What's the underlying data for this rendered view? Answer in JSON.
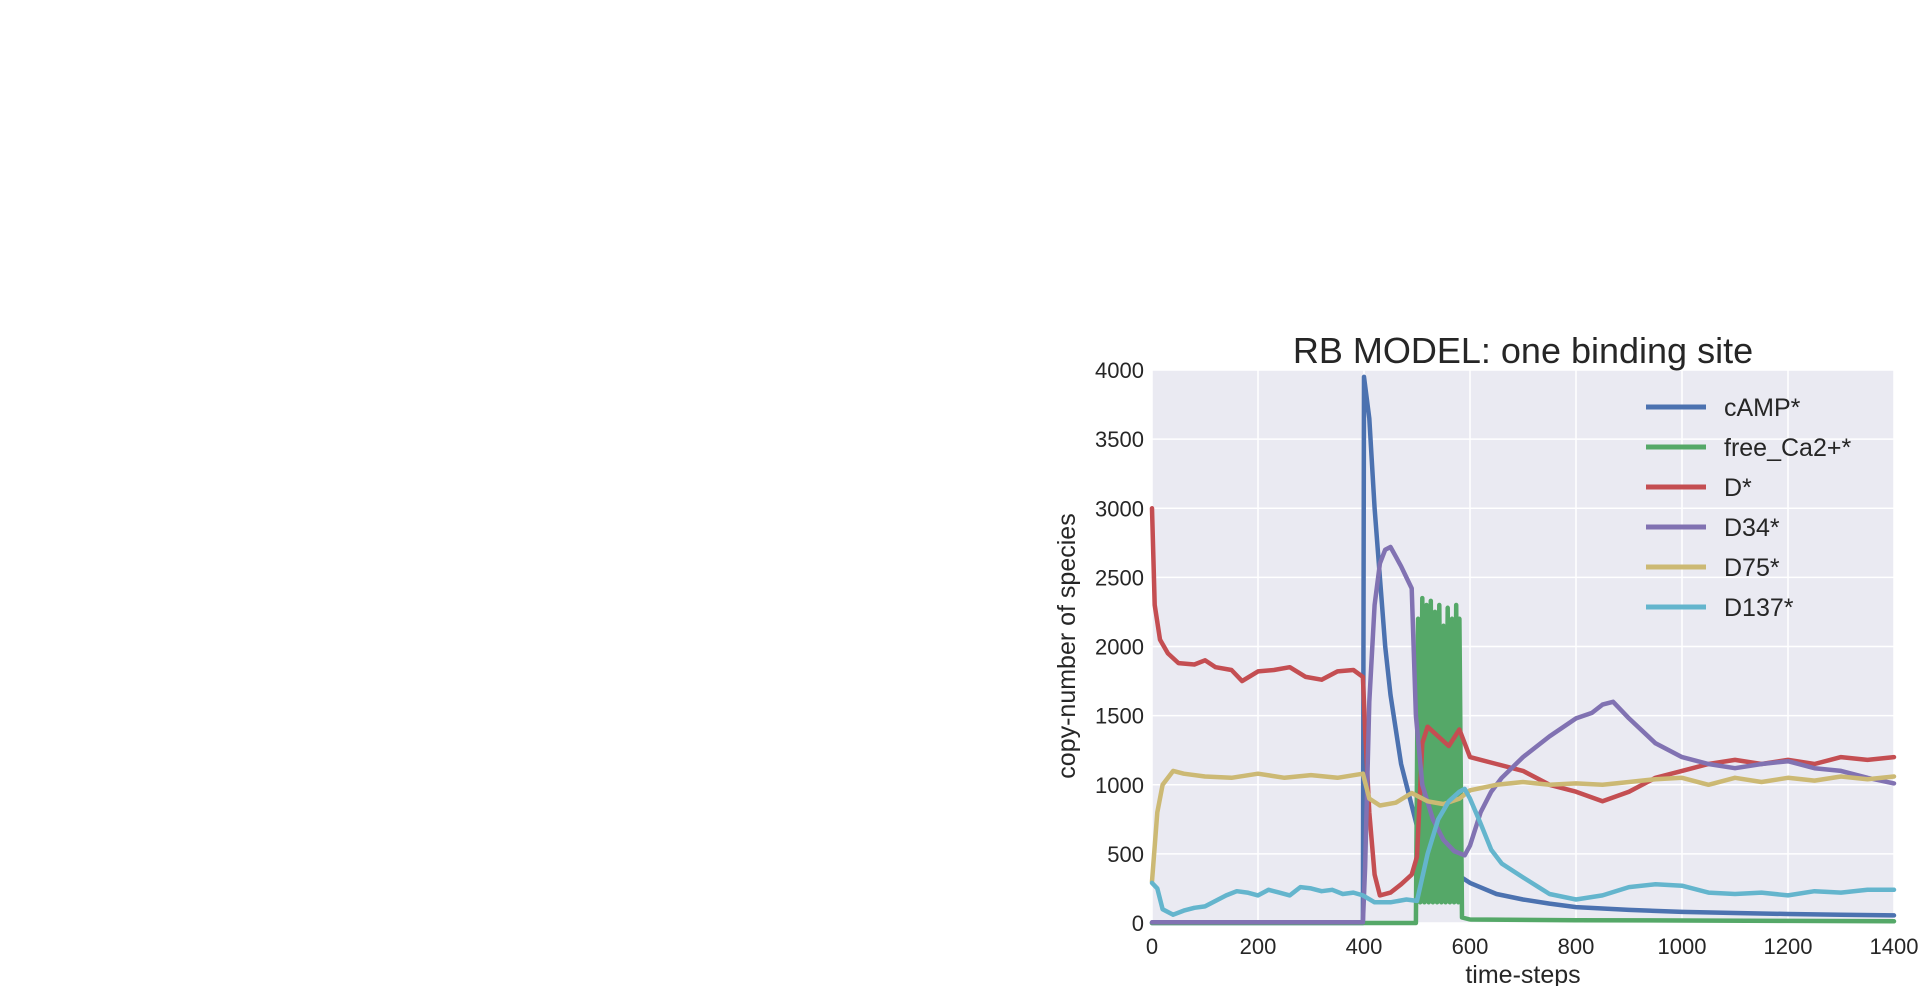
{
  "chart_data": {
    "type": "line",
    "title": "RB MODEL: one binding site",
    "xlabel": "time-steps",
    "ylabel": "copy-number of species",
    "xlim": [
      0,
      1400
    ],
    "ylim": [
      0,
      4000
    ],
    "xticks": [
      0,
      200,
      400,
      600,
      800,
      1000,
      1200,
      1400
    ],
    "yticks": [
      0,
      500,
      1000,
      1500,
      2000,
      2500,
      3000,
      3500,
      4000
    ],
    "grid": true,
    "legend": "top-right",
    "series": [
      {
        "name": "cAMP*",
        "color": "#4c72b0",
        "points": [
          [
            0,
            0
          ],
          [
            398,
            0
          ],
          [
            400,
            3950
          ],
          [
            410,
            3650
          ],
          [
            420,
            3000
          ],
          [
            430,
            2500
          ],
          [
            440,
            2000
          ],
          [
            450,
            1650
          ],
          [
            460,
            1400
          ],
          [
            470,
            1150
          ],
          [
            480,
            1000
          ],
          [
            490,
            850
          ],
          [
            500,
            700
          ],
          [
            520,
            550
          ],
          [
            540,
            470
          ],
          [
            560,
            400
          ],
          [
            580,
            340
          ],
          [
            600,
            290
          ],
          [
            650,
            210
          ],
          [
            700,
            170
          ],
          [
            750,
            140
          ],
          [
            800,
            115
          ],
          [
            900,
            95
          ],
          [
            1000,
            80
          ],
          [
            1100,
            72
          ],
          [
            1200,
            65
          ],
          [
            1300,
            60
          ],
          [
            1400,
            55
          ]
        ]
      },
      {
        "name": "free_Ca2+*",
        "color": "#55a868",
        "points": [
          [
            0,
            0
          ],
          [
            498,
            0
          ],
          [
            502,
            2200
          ],
          [
            506,
            150
          ],
          [
            510,
            2350
          ],
          [
            514,
            150
          ],
          [
            518,
            2300
          ],
          [
            522,
            150
          ],
          [
            526,
            2330
          ],
          [
            530,
            150
          ],
          [
            534,
            2250
          ],
          [
            538,
            150
          ],
          [
            542,
            2300
          ],
          [
            546,
            150
          ],
          [
            550,
            2150
          ],
          [
            554,
            150
          ],
          [
            558,
            2280
          ],
          [
            562,
            150
          ],
          [
            566,
            2200
          ],
          [
            570,
            150
          ],
          [
            574,
            2300
          ],
          [
            578,
            150
          ],
          [
            580,
            2200
          ],
          [
            585,
            40
          ],
          [
            600,
            25
          ],
          [
            800,
            20
          ],
          [
            1000,
            18
          ],
          [
            1200,
            15
          ],
          [
            1400,
            12
          ]
        ]
      },
      {
        "name": "D*",
        "color": "#c44e52",
        "points": [
          [
            0,
            3000
          ],
          [
            5,
            2300
          ],
          [
            15,
            2050
          ],
          [
            30,
            1950
          ],
          [
            50,
            1880
          ],
          [
            80,
            1870
          ],
          [
            100,
            1900
          ],
          [
            120,
            1850
          ],
          [
            150,
            1830
          ],
          [
            170,
            1750
          ],
          [
            200,
            1820
          ],
          [
            230,
            1830
          ],
          [
            260,
            1850
          ],
          [
            290,
            1780
          ],
          [
            320,
            1760
          ],
          [
            350,
            1820
          ],
          [
            380,
            1830
          ],
          [
            398,
            1780
          ],
          [
            402,
            1400
          ],
          [
            410,
            800
          ],
          [
            420,
            350
          ],
          [
            430,
            200
          ],
          [
            450,
            220
          ],
          [
            470,
            280
          ],
          [
            490,
            350
          ],
          [
            500,
            480
          ],
          [
            510,
            1300
          ],
          [
            520,
            1420
          ],
          [
            540,
            1350
          ],
          [
            560,
            1280
          ],
          [
            580,
            1400
          ],
          [
            600,
            1200
          ],
          [
            650,
            1150
          ],
          [
            700,
            1100
          ],
          [
            750,
            1000
          ],
          [
            800,
            950
          ],
          [
            850,
            880
          ],
          [
            900,
            950
          ],
          [
            950,
            1050
          ],
          [
            1000,
            1100
          ],
          [
            1050,
            1150
          ],
          [
            1100,
            1180
          ],
          [
            1150,
            1150
          ],
          [
            1200,
            1180
          ],
          [
            1250,
            1150
          ],
          [
            1300,
            1200
          ],
          [
            1350,
            1180
          ],
          [
            1400,
            1200
          ]
        ]
      },
      {
        "name": "D34*",
        "color": "#8172b2",
        "points": [
          [
            0,
            5
          ],
          [
            398,
            5
          ],
          [
            402,
            400
          ],
          [
            410,
            1600
          ],
          [
            420,
            2300
          ],
          [
            430,
            2600
          ],
          [
            440,
            2700
          ],
          [
            450,
            2720
          ],
          [
            460,
            2650
          ],
          [
            470,
            2580
          ],
          [
            480,
            2500
          ],
          [
            490,
            2420
          ],
          [
            498,
            1500
          ],
          [
            510,
            1000
          ],
          [
            530,
            750
          ],
          [
            550,
            600
          ],
          [
            570,
            520
          ],
          [
            590,
            490
          ],
          [
            600,
            560
          ],
          [
            620,
            800
          ],
          [
            640,
            950
          ],
          [
            660,
            1050
          ],
          [
            700,
            1200
          ],
          [
            750,
            1350
          ],
          [
            800,
            1480
          ],
          [
            830,
            1520
          ],
          [
            850,
            1580
          ],
          [
            870,
            1600
          ],
          [
            880,
            1560
          ],
          [
            900,
            1480
          ],
          [
            950,
            1300
          ],
          [
            1000,
            1200
          ],
          [
            1050,
            1150
          ],
          [
            1100,
            1120
          ],
          [
            1150,
            1150
          ],
          [
            1200,
            1170
          ],
          [
            1250,
            1120
          ],
          [
            1300,
            1100
          ],
          [
            1350,
            1050
          ],
          [
            1400,
            1010
          ]
        ]
      },
      {
        "name": "D75*",
        "color": "#ccb974",
        "points": [
          [
            0,
            300
          ],
          [
            10,
            800
          ],
          [
            20,
            1000
          ],
          [
            40,
            1100
          ],
          [
            60,
            1080
          ],
          [
            100,
            1060
          ],
          [
            150,
            1050
          ],
          [
            200,
            1080
          ],
          [
            250,
            1050
          ],
          [
            300,
            1070
          ],
          [
            350,
            1050
          ],
          [
            398,
            1080
          ],
          [
            410,
            900
          ],
          [
            430,
            850
          ],
          [
            460,
            870
          ],
          [
            490,
            940
          ],
          [
            520,
            880
          ],
          [
            550,
            860
          ],
          [
            580,
            900
          ],
          [
            600,
            960
          ],
          [
            650,
            1000
          ],
          [
            700,
            1020
          ],
          [
            750,
            1000
          ],
          [
            800,
            1010
          ],
          [
            850,
            1000
          ],
          [
            900,
            1020
          ],
          [
            950,
            1040
          ],
          [
            1000,
            1050
          ],
          [
            1050,
            1000
          ],
          [
            1100,
            1050
          ],
          [
            1150,
            1020
          ],
          [
            1200,
            1050
          ],
          [
            1250,
            1030
          ],
          [
            1300,
            1060
          ],
          [
            1350,
            1040
          ],
          [
            1400,
            1060
          ]
        ]
      },
      {
        "name": "D137*",
        "color": "#64b5cd",
        "points": [
          [
            0,
            290
          ],
          [
            10,
            250
          ],
          [
            20,
            100
          ],
          [
            40,
            60
          ],
          [
            60,
            90
          ],
          [
            80,
            110
          ],
          [
            100,
            120
          ],
          [
            120,
            160
          ],
          [
            140,
            200
          ],
          [
            160,
            230
          ],
          [
            180,
            220
          ],
          [
            200,
            200
          ],
          [
            220,
            240
          ],
          [
            240,
            220
          ],
          [
            260,
            200
          ],
          [
            280,
            260
          ],
          [
            300,
            250
          ],
          [
            320,
            230
          ],
          [
            340,
            240
          ],
          [
            360,
            210
          ],
          [
            380,
            220
          ],
          [
            398,
            200
          ],
          [
            420,
            150
          ],
          [
            450,
            150
          ],
          [
            480,
            170
          ],
          [
            500,
            160
          ],
          [
            520,
            500
          ],
          [
            540,
            750
          ],
          [
            560,
            880
          ],
          [
            580,
            950
          ],
          [
            590,
            970
          ],
          [
            600,
            900
          ],
          [
            620,
            720
          ],
          [
            640,
            530
          ],
          [
            660,
            430
          ],
          [
            700,
            330
          ],
          [
            750,
            210
          ],
          [
            800,
            170
          ],
          [
            850,
            200
          ],
          [
            900,
            260
          ],
          [
            950,
            280
          ],
          [
            1000,
            270
          ],
          [
            1050,
            220
          ],
          [
            1100,
            210
          ],
          [
            1150,
            220
          ],
          [
            1200,
            200
          ],
          [
            1250,
            230
          ],
          [
            1300,
            220
          ],
          [
            1350,
            240
          ],
          [
            1400,
            240
          ]
        ]
      }
    ]
  }
}
